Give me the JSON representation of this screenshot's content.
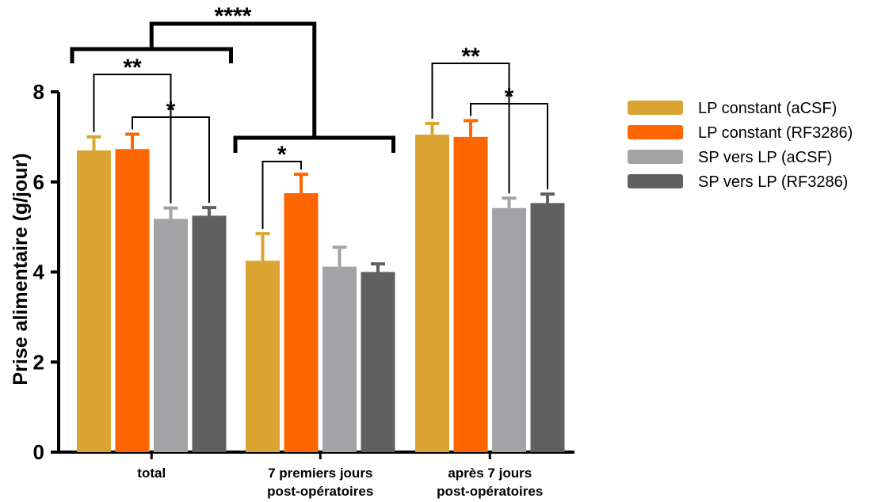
{
  "chart_data": {
    "type": "bar",
    "ylabel": "Prise alimentaire (g/jour)",
    "ylim": [
      0,
      8
    ],
    "yticks": [
      "0",
      "2",
      "4",
      "6",
      "8"
    ],
    "categories": [
      [
        "total"
      ],
      [
        "7 premiers jours",
        "post-opératoires"
      ],
      [
        "après 7 jours",
        "post-opératoires"
      ]
    ],
    "series": [
      {
        "name": "LP constant (aCSF)",
        "color": "#D9A431",
        "values": [
          6.7,
          4.25,
          7.05
        ],
        "errors": [
          0.3,
          0.6,
          0.25
        ]
      },
      {
        "name": "LP constant (RF3286)",
        "color": "#FF6600",
        "values": [
          6.73,
          5.75,
          7.0
        ],
        "errors": [
          0.33,
          0.42,
          0.36
        ]
      },
      {
        "name": "SP vers LP (aCSF)",
        "color": "#A3A3A6",
        "values": [
          5.18,
          4.12,
          5.42
        ],
        "errors": [
          0.24,
          0.43,
          0.22
        ]
      },
      {
        "name": "SP vers LP (RF3286)",
        "color": "#606060",
        "values": [
          5.25,
          4.0,
          5.53
        ],
        "errors": [
          0.18,
          0.18,
          0.2
        ]
      }
    ],
    "legend_position": "right",
    "significance": [
      {
        "label": "****",
        "between": "total vs 7 premiers jours post-opératoires"
      },
      {
        "label": "**",
        "between": "total: LP constant (aCSF) vs SP vers LP (aCSF)"
      },
      {
        "label": "*",
        "between": "total: LP constant (RF3286) vs SP vers LP (RF3286)"
      },
      {
        "label": "*",
        "between": "7 premiers jours: LP constant (aCSF) vs LP constant (RF3286)"
      },
      {
        "label": "**",
        "between": "après 7 jours: LP constant (aCSF) vs SP vers LP (aCSF)"
      },
      {
        "label": "*",
        "between": "après 7 jours: LP constant (RF3286) vs SP vers LP (RF3286)"
      }
    ]
  }
}
